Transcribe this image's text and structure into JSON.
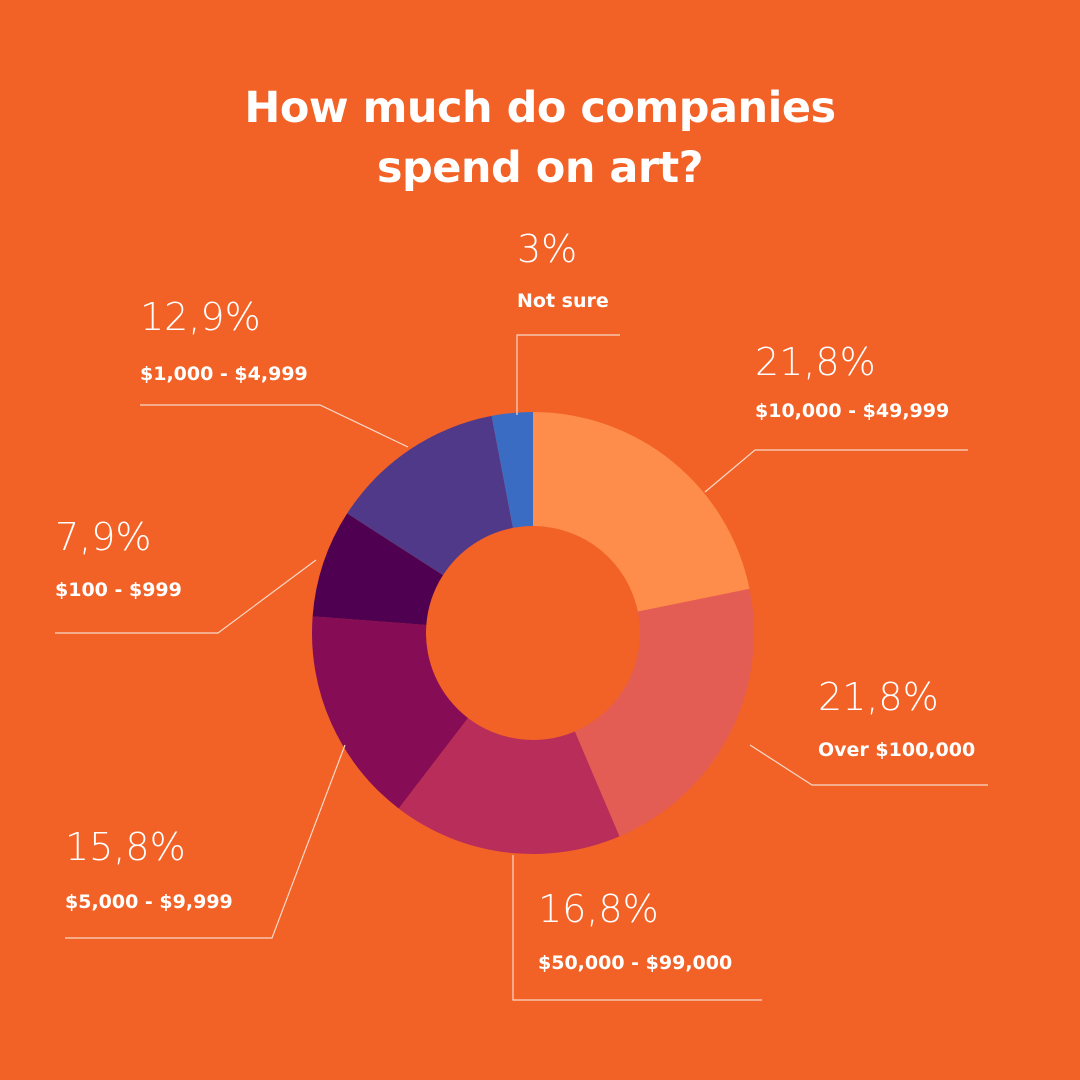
{
  "chart_data": {
    "type": "donut",
    "title": "How much do companies spend on art?",
    "categories": [
      "$10,000 - $49,999",
      "Over $100,000",
      "$50,000 - $99,000",
      "$5,000 - $9,999",
      "$100 - $999",
      "$1,000 - $4,999",
      "Not sure"
    ],
    "values": [
      21.8,
      21.8,
      16.8,
      15.8,
      7.9,
      12.9,
      3
    ],
    "value_labels": [
      "21,8%",
      "21,8%",
      "16,8%",
      "15,8%",
      "7,9%",
      "12,9%",
      "3%"
    ],
    "colors": [
      "#fe8c4a",
      "#e35d55",
      "#b92d5a",
      "#870c56",
      "#4f0050",
      "#51398a",
      "#3b6cc4"
    ]
  }
}
